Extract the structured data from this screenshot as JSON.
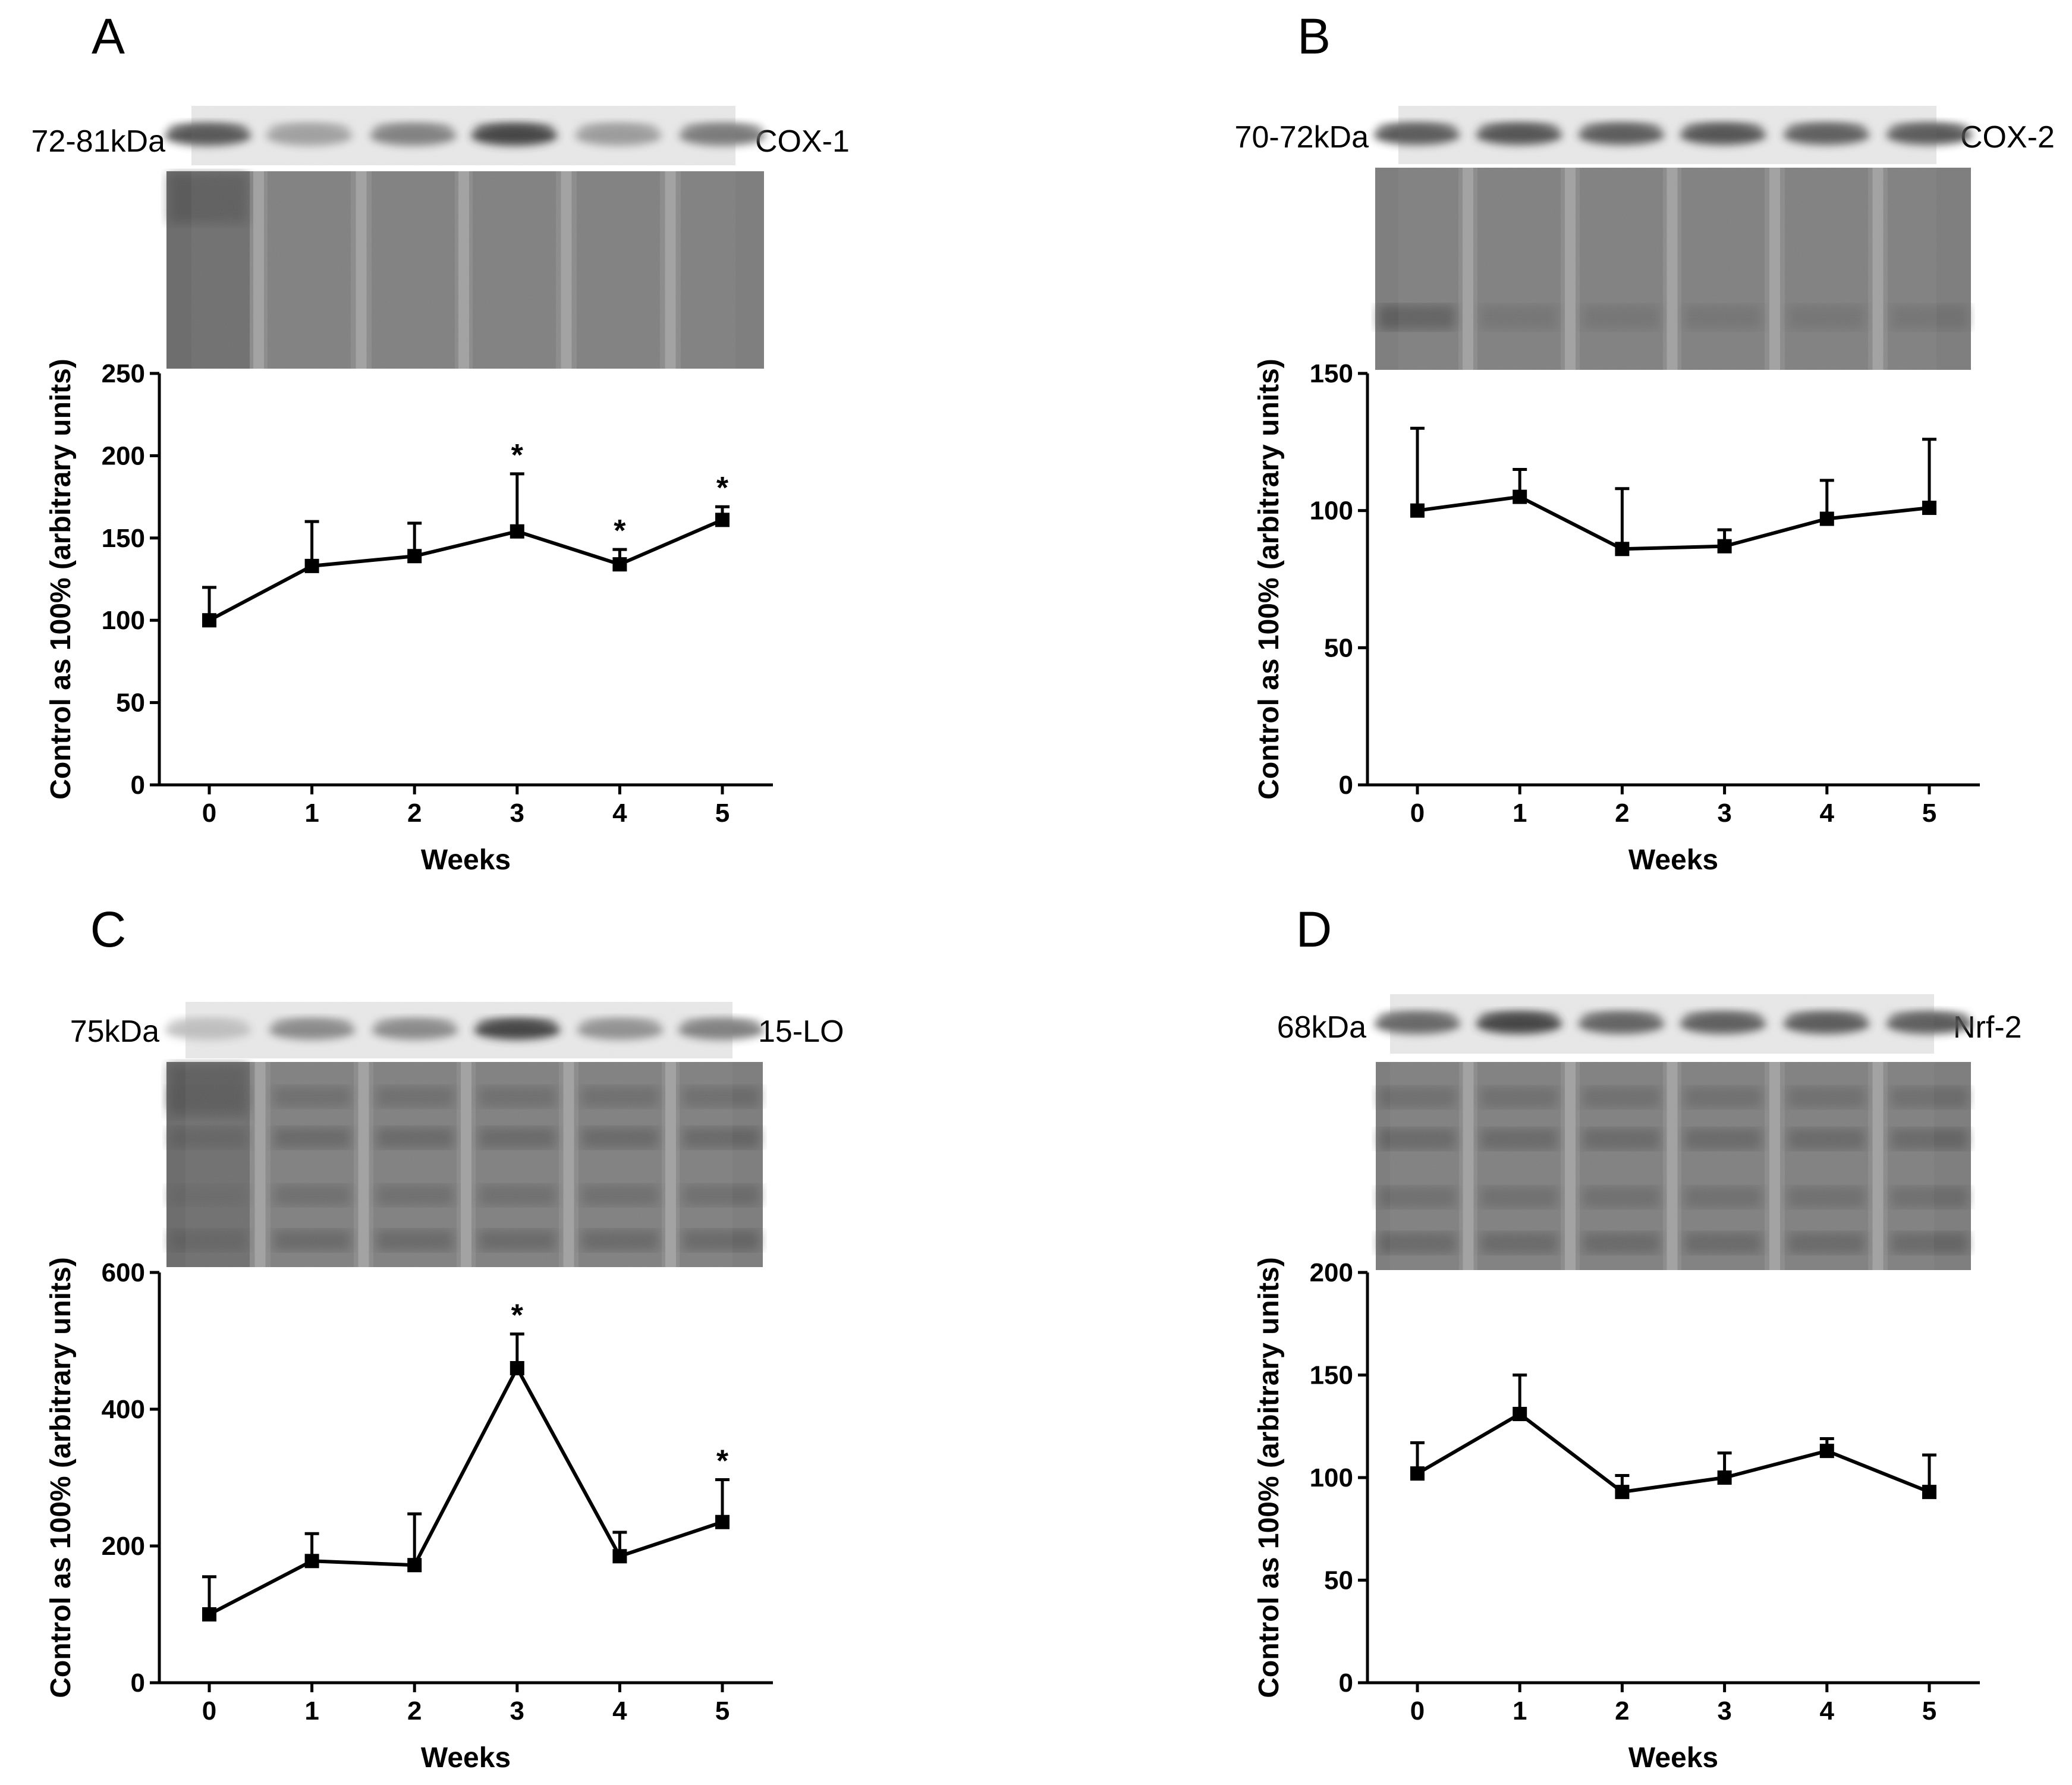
{
  "figure": {
    "panels": [
      {
        "letter": "A",
        "kda": "72-81kDa",
        "protein": "COX-1",
        "blot": {
          "band_intensities": [
            0.82,
            0.35,
            0.55,
            0.95,
            0.38,
            0.6
          ],
          "stain_pattern": "uniform",
          "first_lane_dark": true
        },
        "chart_data": {
          "type": "line",
          "x": [
            0,
            1,
            2,
            3,
            4,
            5
          ],
          "values": [
            100,
            133,
            139,
            154,
            134,
            161
          ],
          "errors": [
            20,
            27,
            20,
            35,
            9,
            8
          ],
          "significant": [
            false,
            false,
            false,
            true,
            true,
            true
          ],
          "xlabel": "Weeks",
          "ylabel": "Control as 100% (arbitrary units)",
          "ylim": [
            0,
            250
          ],
          "yticks": [
            0,
            50,
            100,
            150,
            200,
            250
          ],
          "yticklabels": [
            "0",
            "50",
            "100",
            "150",
            "200",
            "250"
          ],
          "xticklabels": [
            "0",
            "1",
            "2",
            "3",
            "4",
            "5"
          ],
          "asterisk": "*"
        }
      },
      {
        "letter": "B",
        "kda": "70-72kDa",
        "protein": "COX-2",
        "blot": {
          "band_intensities": [
            0.8,
            0.85,
            0.8,
            0.85,
            0.78,
            0.8
          ],
          "stain_pattern": "lower-band",
          "first_lane_dark": false
        },
        "chart_data": {
          "type": "line",
          "x": [
            0,
            1,
            2,
            3,
            4,
            5
          ],
          "values": [
            100,
            105,
            86,
            87,
            97,
            101
          ],
          "errors": [
            30,
            10,
            22,
            6,
            14,
            25
          ],
          "significant": [
            false,
            false,
            false,
            false,
            false,
            false
          ],
          "xlabel": "Weeks",
          "ylabel": "Control as 100% (arbitrary units)",
          "ylim": [
            0,
            150
          ],
          "yticks": [
            0,
            50,
            100,
            150
          ],
          "yticklabels": [
            "0",
            "50",
            "100",
            "150"
          ],
          "xticklabels": [
            "0",
            "1",
            "2",
            "3",
            "4",
            "5"
          ],
          "asterisk": "*"
        }
      },
      {
        "letter": "C",
        "kda": "75kDa",
        "protein": "15-LO",
        "blot": {
          "band_intensities": [
            0.15,
            0.5,
            0.5,
            0.95,
            0.45,
            0.55
          ],
          "stain_pattern": "striped",
          "first_lane_dark": true
        },
        "chart_data": {
          "type": "line",
          "x": [
            0,
            1,
            2,
            3,
            4,
            5
          ],
          "values": [
            100,
            178,
            172,
            460,
            185,
            235
          ],
          "errors": [
            55,
            40,
            75,
            50,
            35,
            62
          ],
          "significant": [
            false,
            false,
            false,
            true,
            false,
            true
          ],
          "xlabel": "Weeks",
          "ylabel": "Control as 100% (arbitrary units)",
          "ylim": [
            0,
            600
          ],
          "yticks": [
            0,
            200,
            400,
            600
          ],
          "yticklabels": [
            "0",
            "200",
            "400",
            "600"
          ],
          "xticklabels": [
            "0",
            "1",
            "2",
            "3",
            "4",
            "5"
          ],
          "asterisk": "*"
        }
      },
      {
        "letter": "D",
        "kda": "68kDa",
        "protein": "Nrf-2",
        "blot": {
          "band_intensities": [
            0.72,
            0.95,
            0.75,
            0.78,
            0.8,
            0.78
          ],
          "stain_pattern": "striped",
          "first_lane_dark": false
        },
        "chart_data": {
          "type": "line",
          "x": [
            0,
            1,
            2,
            3,
            4,
            5
          ],
          "values": [
            102,
            131,
            93,
            100,
            113,
            93
          ],
          "errors": [
            15,
            19,
            8,
            12,
            6,
            18
          ],
          "significant": [
            false,
            false,
            false,
            false,
            false,
            false
          ],
          "xlabel": "Weeks",
          "ylabel": "Control as 100% (arbitrary units)",
          "ylim": [
            0,
            200
          ],
          "yticks": [
            0,
            50,
            100,
            150,
            200
          ],
          "yticklabels": [
            "0",
            "50",
            "100",
            "150",
            "200"
          ],
          "xticklabels": [
            "0",
            "1",
            "2",
            "3",
            "4",
            "5"
          ],
          "asterisk": "*"
        }
      }
    ]
  }
}
